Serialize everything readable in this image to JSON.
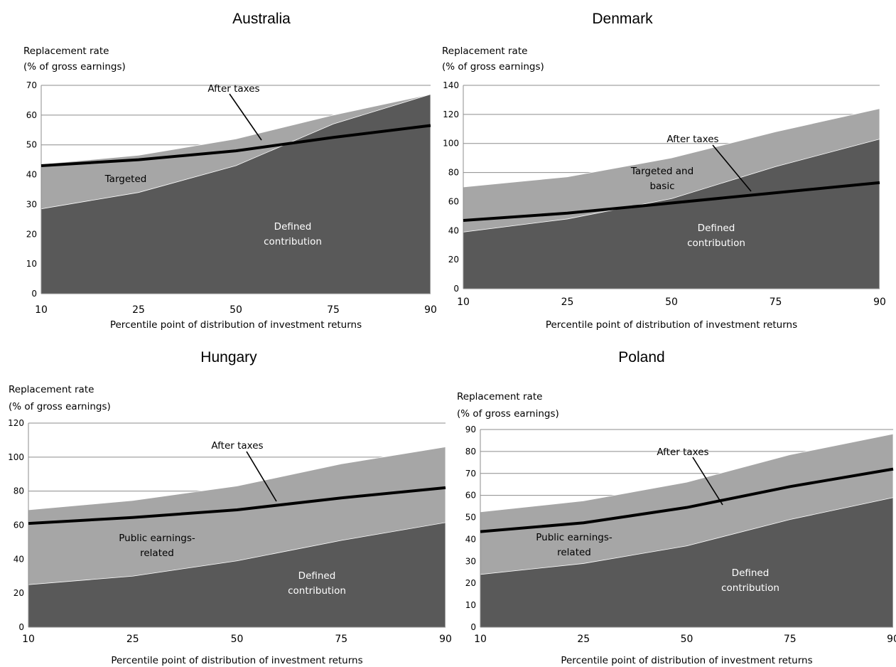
{
  "chart_data": [
    {
      "type": "area",
      "title": "Australia",
      "ylabel_lines": [
        "Replacement rate",
        "(% of gross earnings)"
      ],
      "xlabel": "Percentile point of distribution of investment returns",
      "categories": [
        "10",
        "25",
        "50",
        "75",
        "90"
      ],
      "ylim": [
        0,
        70
      ],
      "yticks": [
        0,
        10,
        20,
        30,
        40,
        50,
        60,
        70
      ],
      "grid": true,
      "series": [
        {
          "name": "Defined contribution",
          "kind": "area",
          "color": "#595959",
          "values": [
            28.5,
            34,
            43,
            57,
            67
          ]
        },
        {
          "name": "Targeted",
          "kind": "area",
          "color": "#a6a6a6",
          "values": [
            43.5,
            46.5,
            52,
            60,
            67
          ]
        },
        {
          "name": "After taxes",
          "kind": "line",
          "color": "#000000",
          "values": [
            43,
            45,
            48,
            52.5,
            56.5
          ]
        }
      ],
      "annotations": [
        {
          "text_lines": [
            "After taxes"
          ],
          "color": "#000000"
        },
        {
          "text_lines": [
            "Targeted"
          ],
          "color": "#000000"
        },
        {
          "text_lines": [
            "Defined",
            "contribution"
          ],
          "color": "#ffffff"
        }
      ]
    },
    {
      "type": "area",
      "title": "Denmark",
      "ylabel_lines": [
        "Replacement rate",
        "(% of gross earnings)"
      ],
      "xlabel": "Percentile point of distribution of investment returns",
      "categories": [
        "10",
        "25",
        "50",
        "75",
        "90"
      ],
      "ylim": [
        0,
        140
      ],
      "yticks": [
        0,
        20,
        40,
        60,
        80,
        100,
        120,
        140
      ],
      "grid": true,
      "series": [
        {
          "name": "Defined contribution",
          "kind": "area",
          "color": "#595959",
          "values": [
            39,
            48,
            62,
            84,
            103
          ]
        },
        {
          "name": "Targeted and basic",
          "kind": "area",
          "color": "#a6a6a6",
          "values": [
            70,
            77,
            90,
            108,
            124
          ]
        },
        {
          "name": "After taxes",
          "kind": "line",
          "color": "#000000",
          "values": [
            47,
            52,
            59,
            66,
            73
          ]
        }
      ],
      "annotations": [
        {
          "text_lines": [
            "After taxes"
          ],
          "color": "#000000"
        },
        {
          "text_lines": [
            "Targeted and",
            "basic"
          ],
          "color": "#000000"
        },
        {
          "text_lines": [
            "Defined",
            "contribution"
          ],
          "color": "#ffffff"
        }
      ]
    },
    {
      "type": "area",
      "title": "Hungary",
      "ylabel_lines": [
        "Replacement rate",
        "(% of gross earnings)"
      ],
      "xlabel": "Percentile point of distribution of investment returns",
      "categories": [
        "10",
        "25",
        "50",
        "75",
        "90"
      ],
      "ylim": [
        0,
        120
      ],
      "yticks": [
        0,
        20,
        40,
        60,
        80,
        100,
        120
      ],
      "grid": true,
      "series": [
        {
          "name": "Defined contribution",
          "kind": "area",
          "color": "#595959",
          "values": [
            25,
            30,
            39,
            51,
            61.5
          ]
        },
        {
          "name": "Public earnings-related",
          "kind": "area",
          "color": "#a6a6a6",
          "values": [
            69,
            74.5,
            83,
            96,
            106
          ]
        },
        {
          "name": "After taxes",
          "kind": "line",
          "color": "#000000",
          "values": [
            61,
            64.5,
            69,
            76,
            82
          ]
        }
      ],
      "annotations": [
        {
          "text_lines": [
            "After taxes"
          ],
          "color": "#000000"
        },
        {
          "text_lines": [
            "Public earnings-",
            "related"
          ],
          "color": "#000000"
        },
        {
          "text_lines": [
            "Defined",
            "contribution"
          ],
          "color": "#ffffff"
        }
      ]
    },
    {
      "type": "area",
      "title": "Poland",
      "ylabel_lines": [
        "Replacement rate",
        "(% of gross earnings)"
      ],
      "xlabel": "Percentile point of distribution of investment returns",
      "categories": [
        "10",
        "25",
        "50",
        "75",
        "90"
      ],
      "ylim": [
        0,
        90
      ],
      "yticks": [
        0,
        10,
        20,
        30,
        40,
        50,
        60,
        70,
        80,
        90
      ],
      "grid": true,
      "series": [
        {
          "name": "Defined contribution",
          "kind": "area",
          "color": "#595959",
          "values": [
            24,
            29,
            37,
            49,
            59
          ]
        },
        {
          "name": "Public earnings-related",
          "kind": "area",
          "color": "#a6a6a6",
          "values": [
            52.5,
            57.5,
            66,
            78.5,
            88
          ]
        },
        {
          "name": "After taxes",
          "kind": "line",
          "color": "#000000",
          "values": [
            43.5,
            47.5,
            54.5,
            64,
            72
          ]
        }
      ],
      "annotations": [
        {
          "text_lines": [
            "After taxes"
          ],
          "color": "#000000"
        },
        {
          "text_lines": [
            "Public earnings-",
            "related"
          ],
          "color": "#000000"
        },
        {
          "text_lines": [
            "Defined",
            "contribution"
          ],
          "color": "#ffffff"
        }
      ]
    }
  ]
}
